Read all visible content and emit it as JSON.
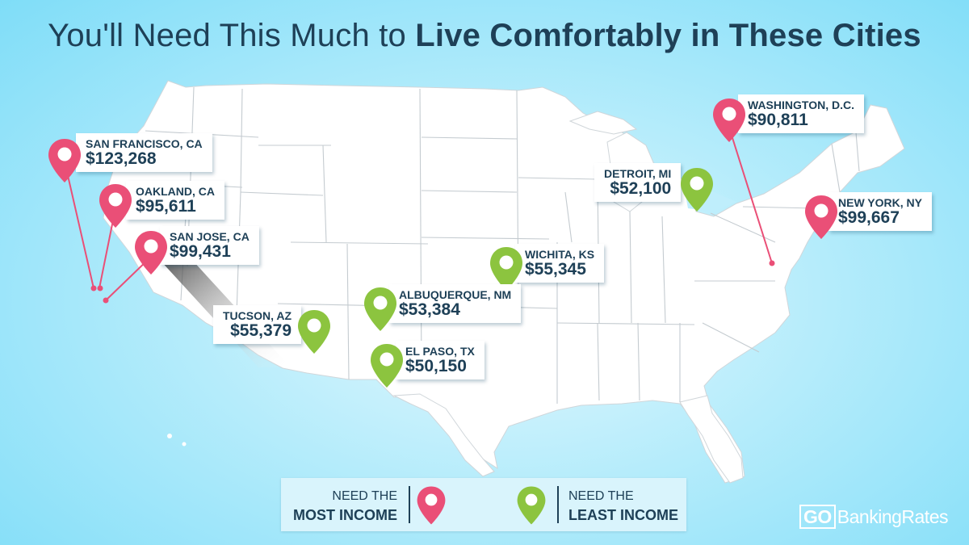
{
  "title": {
    "regular": "You'll Need This Much to ",
    "bold": "Live Comfortably in These Cities"
  },
  "colors": {
    "most": "#ea4f77",
    "least": "#8cc43f",
    "text": "#1e4057",
    "map": "#ffffff",
    "border": "#c4cbd0"
  },
  "cities": [
    {
      "id": "san-francisco",
      "city": "SAN FRANCISCO, CA",
      "income": "$123,268",
      "group": "most"
    },
    {
      "id": "oakland",
      "city": "OAKLAND, CA",
      "income": "$95,611",
      "group": "most"
    },
    {
      "id": "san-jose",
      "city": "SAN JOSE, CA",
      "income": "$99,431",
      "group": "most"
    },
    {
      "id": "washington",
      "city": "WASHINGTON, D.C.",
      "income": "$90,811",
      "group": "most"
    },
    {
      "id": "new-york",
      "city": "NEW YORK, NY",
      "income": "$99,667",
      "group": "most"
    },
    {
      "id": "detroit",
      "city": "DETROIT, MI",
      "income": "$52,100",
      "group": "least"
    },
    {
      "id": "wichita",
      "city": "WICHITA, KS",
      "income": "$55,345",
      "group": "least"
    },
    {
      "id": "albuquerque",
      "city": "ALBUQUERQUE, NM",
      "income": "$53,384",
      "group": "least"
    },
    {
      "id": "tucson",
      "city": "TUCSON, AZ",
      "income": "$55,379",
      "group": "least"
    },
    {
      "id": "el-paso",
      "city": "EL PASO, TX",
      "income": "$50,150",
      "group": "least"
    }
  ],
  "legend": {
    "most": {
      "line1": "NEED THE",
      "line2": "MOST INCOME",
      "icon": "map-pin-icon"
    },
    "least": {
      "line1": "NEED THE",
      "line2": "LEAST INCOME",
      "icon": "map-pin-icon"
    }
  },
  "brand": {
    "go": "GO",
    "rest": "BankingRates"
  }
}
